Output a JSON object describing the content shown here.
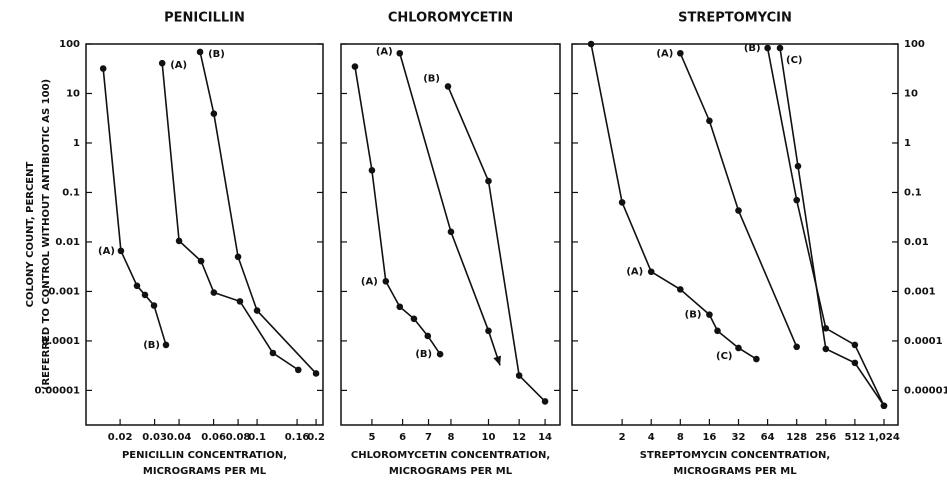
{
  "chart_data": [
    {
      "type": "line",
      "title": "PENICILLIN",
      "x_label": [
        "PENICILLIN CONCENTRATION,",
        "MICROGRAMS PER ML"
      ],
      "y_label": [
        "COLONY COUNT, PERCENT",
        "(REFERRED TO CONTROL WITHOUT ANTIBIOTIC AS 100)"
      ],
      "xlog": true,
      "ylog": true,
      "xlim": [
        0.0134,
        0.217
      ],
      "ylim": [
        2e-06,
        100
      ],
      "xticks": [
        0.02,
        0.03,
        0.04,
        0.06,
        0.08,
        0.1,
        0.16,
        0.2
      ],
      "yticks": [
        100,
        10,
        1,
        0.1,
        0.01,
        0.001,
        0.0001,
        1e-05
      ],
      "ytick_labels_side": "left",
      "color": "#111",
      "series": [
        {
          "x": [
            0.0164,
            0.0202,
            0.0244,
            0.0268,
            0.0298,
            0.0343
          ],
          "values": [
            32,
            0.0066,
            0.0013,
            0.00085,
            0.00052,
            8.3e-05
          ]
        },
        {
          "x": [
            0.0328,
            0.04,
            0.0518,
            0.0602,
            0.0818,
            0.1205,
            0.1623
          ],
          "values": [
            41,
            0.0105,
            0.0041,
            0.00095,
            0.00063,
            5.7e-05,
            2.6e-05
          ]
        },
        {
          "x": [
            0.0512,
            0.0602,
            0.08,
            0.1,
            0.2
          ],
          "values": [
            69,
            3.9,
            0.005,
            0.00041,
            2.2e-05
          ]
        }
      ],
      "annotations": [
        {
          "text": "(A)",
          "series": 1,
          "point": 0
        },
        {
          "text": "(B)",
          "series": 2,
          "point": 0
        },
        {
          "text": "(A)",
          "series": 0,
          "point": 1
        },
        {
          "text": "(B)",
          "series": 0,
          "point": 5
        }
      ]
    },
    {
      "type": "line",
      "title": "CHLOROMYCETIN",
      "x_label": [
        "CHLOROMYCETIN CONCENTRATION,",
        "MICROGRAMS PER ML"
      ],
      "xlog": true,
      "ylog": true,
      "xlim": [
        4.16,
        15.3
      ],
      "ylim": [
        2e-06,
        100
      ],
      "xticks": [
        5,
        6,
        7,
        8,
        10,
        12,
        14
      ],
      "yticks": [
        100,
        10,
        1,
        0.1,
        0.01,
        0.001,
        0.0001,
        1e-05
      ],
      "ytick_labels_side": "none",
      "color": "#111",
      "series": [
        {
          "x": [
            4.52,
            5,
            5.43,
            5.9,
            6.42,
            6.97,
            7.5
          ],
          "values": [
            35,
            0.28,
            0.0016,
            0.00049,
            0.00028,
            0.000126,
            5.4e-05
          ]
        },
        {
          "x": [
            5.9,
            8,
            10,
            10.71
          ],
          "values": [
            65,
            0.016,
            0.00016,
            3.2e-05
          ],
          "end_arrow": true
        },
        {
          "x": [
            7.86,
            10,
            12,
            14
          ],
          "values": [
            13.9,
            0.17,
            2e-05,
            6e-06
          ]
        }
      ],
      "annotations": [
        {
          "text": "(A)",
          "series": 1,
          "point": 0
        },
        {
          "text": "(B)",
          "series": 2,
          "point": 0
        },
        {
          "text": "(A)",
          "series": 0,
          "point": 2
        },
        {
          "text": "(B)",
          "series": 0,
          "point": 6
        }
      ]
    },
    {
      "type": "line",
      "title": "STREPTOMYCIN",
      "x_label": [
        "STREPTOMYCIN CONCENTRATION,",
        "MICROGRAMS PER ML"
      ],
      "xlog": true,
      "ylog": true,
      "xlim": [
        0.606,
        1430
      ],
      "ylim": [
        2e-06,
        100
      ],
      "xticks": [
        2,
        4,
        8,
        16,
        32,
        64,
        128,
        256,
        512,
        {
          "value": 1024,
          "label": "1,024"
        }
      ],
      "yticks": [
        100,
        10,
        1,
        0.1,
        0.01,
        0.001,
        0.0001,
        1e-05
      ],
      "ytick_labels_side": "right",
      "color": "#111",
      "series": [
        {
          "x": [
            0.955,
            2,
            4,
            8,
            16,
            19.4,
            32,
            49
          ],
          "values": [
            100,
            0.063,
            0.0025,
            0.0011,
            0.00034,
            0.00016,
            7.2e-05,
            4.3e-05
          ]
        },
        {
          "x": [
            8,
            16,
            32,
            128
          ],
          "values": [
            65,
            2.8,
            0.043,
            7.6e-05
          ]
        },
        {
          "x": [
            64,
            128,
            256,
            512,
            1024
          ],
          "values": [
            83,
            0.07,
            0.00018,
            8.3e-05,
            4.9e-06
          ]
        },
        {
          "x": [
            86,
            132,
            256,
            512,
            1024
          ],
          "values": [
            83,
            0.34,
            6.9e-05,
            3.6e-05,
            4.9e-06
          ]
        }
      ],
      "annotations": [
        {
          "text": "(A)",
          "series": 1,
          "point": 0
        },
        {
          "text": "(B)",
          "series": 2,
          "point": 0
        },
        {
          "text": "(C)",
          "series": 3,
          "point": 0
        },
        {
          "text": "(A)",
          "series": 0,
          "point": 2
        },
        {
          "text": "(B)",
          "series": 0,
          "point": 4
        },
        {
          "text": "(C)",
          "series": 0,
          "point": 6
        }
      ]
    }
  ]
}
